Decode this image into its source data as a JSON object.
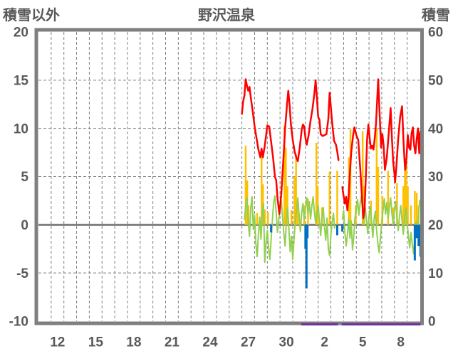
{
  "header": {
    "left_axis_title": "積雪以外",
    "chart_title": "野沢温泉",
    "right_axis_title": "積雪"
  },
  "chart_data": {
    "type": "line",
    "title": "野沢温泉",
    "grid": true,
    "legend": "none",
    "colors": {
      "frame": "#7f7f7f",
      "grid": "#7f7f7f",
      "zero_line": "#7f7f7f",
      "text": "#595959"
    },
    "left_axis": {
      "label": "積雪以外",
      "range": [
        -10,
        20
      ],
      "ticks": [
        20,
        15,
        10,
        5,
        0,
        -5,
        -10
      ],
      "grid_values": [
        15,
        10,
        5,
        -5
      ],
      "zero_value": 0
    },
    "right_axis": {
      "label": "積雪",
      "range": [
        0,
        60
      ],
      "ticks": [
        60,
        50,
        40,
        30,
        20,
        10,
        0
      ]
    },
    "x_axis": {
      "day_range": [
        11,
        41
      ],
      "gridline_every_day": true,
      "tick_days": [
        12,
        15,
        18,
        21,
        24,
        27,
        30,
        33,
        36,
        39
      ],
      "tick_labels": [
        "12",
        "15",
        "18",
        "21",
        "24",
        "27",
        "30",
        "2",
        "5",
        "8"
      ]
    },
    "series": [
      {
        "name": "orange-bars",
        "color": "#FFC000",
        "axis": "left",
        "type": "bars",
        "width": 2.5,
        "baseline": 0,
        "bars": [
          [
            27.3,
            8.2
          ],
          [
            27.42,
            4.6
          ],
          [
            27.52,
            2.0
          ],
          [
            28.2,
            1.2
          ],
          [
            28.55,
            7.4
          ],
          [
            28.66,
            4.2
          ],
          [
            28.8,
            1.6
          ],
          [
            29.05,
            1.3
          ],
          [
            30.35,
            10.3
          ],
          [
            30.46,
            8.0
          ],
          [
            30.58,
            4.0
          ],
          [
            30.9,
            1.5
          ],
          [
            31.14,
            5.0
          ],
          [
            31.26,
            7.3
          ],
          [
            31.4,
            2.5
          ],
          [
            31.9,
            2.0
          ],
          [
            32.2,
            2.7
          ],
          [
            32.86,
            8.5
          ],
          [
            32.96,
            4.0
          ],
          [
            33.3,
            1.8
          ],
          [
            33.9,
            5.5
          ],
          [
            34.5,
            5.6
          ],
          [
            35.42,
            7.0
          ],
          [
            35.54,
            9.9
          ],
          [
            35.95,
            2.0
          ],
          [
            36.5,
            9.7
          ],
          [
            36.62,
            4.0
          ],
          [
            37.15,
            2.5
          ],
          [
            37.6,
            10.0
          ],
          [
            37.72,
            6.0
          ],
          [
            38.05,
            3.0
          ],
          [
            38.5,
            5.6
          ],
          [
            38.9,
            1.8
          ],
          [
            39.2,
            4.3
          ],
          [
            39.7,
            4.0
          ],
          [
            39.82,
            6.9
          ],
          [
            39.93,
            6.5
          ],
          [
            40.05,
            4.0
          ],
          [
            40.3,
            2.0
          ],
          [
            40.6,
            3.5
          ],
          [
            40.75,
            3.3
          ],
          [
            40.9,
            2.0
          ]
        ]
      },
      {
        "name": "green-noise-line",
        "color": "#92D050",
        "axis": "left",
        "type": "noise-line",
        "width": 2,
        "start": 27.2,
        "step": 0.1,
        "values": [
          0.5,
          2.0,
          2.8,
          0.3,
          -1.2,
          1.8,
          2.9,
          -0.5,
          1.0,
          -2.0,
          -3.3,
          -1.0,
          0.8,
          -1.5,
          1.2,
          2.2,
          -3.9,
          -1.8,
          -0.6,
          -2.4,
          -3.6,
          -1.5,
          0.5,
          2.3,
          3.0,
          1.2,
          -0.8,
          0.6,
          1.5,
          2.5,
          0.8,
          -0.9,
          -2.2,
          0.4,
          1.8,
          -0.5,
          -2.8,
          -1.2,
          -3.6,
          -1.5,
          0.3,
          1.5,
          2.8,
          1.0,
          -0.7,
          1.2,
          2.2,
          0.5,
          1.7,
          2.8,
          1.2,
          2.4,
          0.6,
          1.9,
          2.9,
          1.4,
          0.2,
          1.1,
          2.0,
          0.4,
          -1.1,
          0.9,
          1.8,
          -0.3,
          -1.6,
          0.7,
          -2.5,
          -3.2,
          -1.0,
          0.3,
          1.2,
          -0.4,
          null,
          null,
          null,
          null,
          null,
          0.5,
          1.5,
          -0.8,
          -2.2,
          -1.0,
          0.6,
          -1.4,
          0.4,
          -2.6,
          -1.2,
          0.8,
          1.6,
          2.6,
          1.0,
          2.2,
          3.0,
          1.5,
          0.2,
          1.8,
          0.5,
          -0.9,
          0.9,
          1.9,
          0.3,
          -1.3,
          0.6,
          1.4,
          -0.6,
          -2.0,
          -2.9,
          -1.4,
          0.4,
          1.5,
          2.7,
          1.1,
          2.3,
          0.7,
          1.8,
          2.8,
          1.2,
          0.1,
          1.4,
          2.4,
          0.8,
          -0.6,
          0.9,
          2.0,
          0.4,
          -1.0,
          0.7,
          1.7,
          0.2,
          -1.2,
          -2.4,
          -0.8,
          -2.0,
          -3.0,
          -1.6,
          0.3,
          -1.1,
          1.2,
          2.6
        ]
      },
      {
        "name": "blue-bars",
        "color": "#0070C0",
        "axis": "left",
        "type": "bars",
        "width": 3,
        "baseline": 0,
        "bars": [
          [
            29.3,
            -0.8
          ],
          [
            32.0,
            -2.5
          ],
          [
            32.08,
            -6.6
          ],
          [
            32.16,
            -1.4
          ],
          [
            34.5,
            -1.1
          ],
          [
            34.9,
            -0.7
          ],
          [
            40.6,
            -3.7
          ],
          [
            40.75,
            -1.4
          ],
          [
            40.9,
            -2.2
          ],
          [
            41.05,
            -3.3
          ]
        ]
      },
      {
        "name": "red-line",
        "color": "#FF0000",
        "axis": "left",
        "type": "line",
        "width": 2.5,
        "segments": [
          [
            [
              27.0,
              11.5
            ],
            [
              27.1,
              12.8
            ],
            [
              27.2,
              13.4
            ],
            [
              27.3,
              15.1
            ],
            [
              27.4,
              14.4
            ],
            [
              27.5,
              13.9
            ],
            [
              27.6,
              14.3
            ],
            [
              27.7,
              13.2
            ],
            [
              27.85,
              11.8
            ],
            [
              28.0,
              10.2
            ],
            [
              28.15,
              9.0
            ],
            [
              28.3,
              7.8
            ],
            [
              28.45,
              7.0
            ],
            [
              28.55,
              7.9
            ],
            [
              28.65,
              7.0
            ],
            [
              28.8,
              8.2
            ],
            [
              29.0,
              10.3
            ],
            [
              29.15,
              10.2
            ],
            [
              29.3,
              8.6
            ],
            [
              29.45,
              7.0
            ],
            [
              29.6,
              5.0
            ],
            [
              29.7,
              4.6
            ],
            [
              29.8,
              2.8
            ],
            [
              29.95,
              1.1
            ],
            [
              30.1,
              3.2
            ],
            [
              30.25,
              6.5
            ],
            [
              30.4,
              10.0
            ],
            [
              30.55,
              12.5
            ],
            [
              30.65,
              13.9
            ],
            [
              30.75,
              12.5
            ],
            [
              30.85,
              10.5
            ],
            [
              31.0,
              8.8
            ],
            [
              31.15,
              7.6
            ],
            [
              31.3,
              6.9
            ],
            [
              31.4,
              6.6
            ],
            [
              31.55,
              8.0
            ],
            [
              31.7,
              9.8
            ],
            [
              31.8,
              10.4
            ],
            [
              31.9,
              10.2
            ],
            [
              32.0,
              9.0
            ],
            [
              32.1,
              8.3
            ],
            [
              32.25,
              9.3
            ],
            [
              32.4,
              10.8
            ],
            [
              32.55,
              12.0
            ],
            [
              32.7,
              13.6
            ],
            [
              32.8,
              15.0
            ],
            [
              32.9,
              13.2
            ],
            [
              33.0,
              11.2
            ],
            [
              33.1,
              10.9
            ],
            [
              33.2,
              9.4
            ],
            [
              33.35,
              9.2
            ],
            [
              33.5,
              9.3
            ],
            [
              33.65,
              9.4
            ],
            [
              33.8,
              11.0
            ],
            [
              33.9,
              13.7
            ],
            [
              34.0,
              12.2
            ],
            [
              34.1,
              10.6
            ],
            [
              34.25,
              8.7
            ],
            [
              34.4,
              8.3
            ],
            [
              34.5,
              7.6
            ],
            [
              34.6,
              6.7
            ]
          ],
          [
            [
              34.9,
              3.9
            ],
            [
              35.0,
              3.0
            ],
            [
              35.1,
              2.2
            ],
            [
              35.2,
              2.9
            ],
            [
              35.3,
              1.5
            ],
            [
              35.4,
              3.0
            ],
            [
              35.5,
              5.5
            ],
            [
              35.6,
              7.5
            ],
            [
              35.75,
              9.3
            ],
            [
              35.85,
              10.1
            ],
            [
              36.0,
              9.3
            ],
            [
              36.15,
              8.8
            ],
            [
              36.3,
              6.0
            ],
            [
              36.45,
              2.8
            ],
            [
              36.55,
              0.7
            ],
            [
              36.65,
              1.5
            ],
            [
              36.75,
              5.0
            ],
            [
              36.85,
              8.9
            ],
            [
              36.95,
              10.4
            ],
            [
              37.05,
              9.0
            ],
            [
              37.15,
              7.9
            ],
            [
              37.25,
              8.2
            ],
            [
              37.35,
              7.8
            ],
            [
              37.45,
              9.0
            ],
            [
              37.55,
              10.5
            ],
            [
              37.65,
              13.2
            ],
            [
              37.72,
              15.1
            ],
            [
              37.85,
              11.0
            ],
            [
              37.95,
              8.0
            ],
            [
              38.05,
              9.4
            ],
            [
              38.15,
              8.2
            ],
            [
              38.25,
              5.7
            ],
            [
              38.4,
              7.0
            ],
            [
              38.55,
              9.5
            ],
            [
              38.7,
              12.1
            ],
            [
              38.8,
              9.0
            ],
            [
              38.9,
              6.5
            ],
            [
              39.0,
              5.3
            ],
            [
              39.05,
              4.4
            ],
            [
              39.15,
              6.0
            ],
            [
              39.3,
              9.0
            ],
            [
              39.45,
              11.2
            ],
            [
              39.6,
              12.3
            ],
            [
              39.7,
              9.0
            ],
            [
              39.8,
              6.5
            ],
            [
              39.85,
              5.7
            ],
            [
              39.95,
              7.0
            ],
            [
              40.05,
              9.3
            ],
            [
              40.15,
              8.0
            ],
            [
              40.25,
              7.8
            ],
            [
              40.35,
              9.5
            ],
            [
              40.45,
              10.1
            ],
            [
              40.55,
              8.2
            ],
            [
              40.65,
              7.4
            ],
            [
              40.75,
              8.9
            ],
            [
              40.85,
              10.0
            ],
            [
              40.95,
              7.4
            ],
            [
              41.0,
              9.4
            ],
            [
              41.05,
              9.7
            ]
          ]
        ]
      },
      {
        "name": "purple-snow-line",
        "color": "#7030A0",
        "axis": "right",
        "type": "bottom-segments",
        "width": 3,
        "value": 0,
        "segments": [
          [
            31.67,
            34.55
          ],
          [
            34.85,
            41.05
          ]
        ]
      }
    ]
  }
}
